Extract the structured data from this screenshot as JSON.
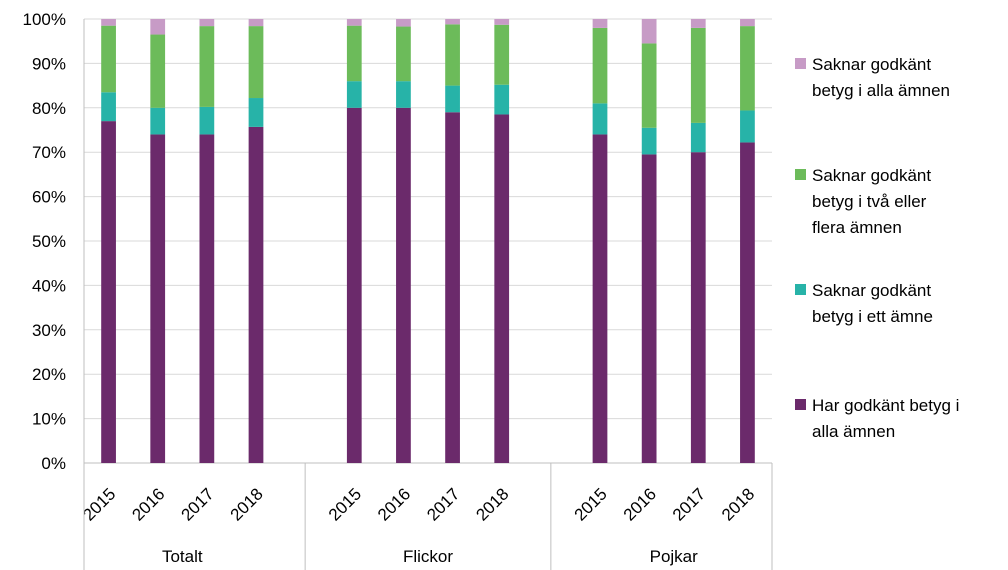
{
  "chart_data": {
    "type": "bar",
    "stacked": true,
    "percent_axis": true,
    "groups": [
      "Totalt",
      "Flickor",
      "Pojkar"
    ],
    "years": [
      "2015",
      "2016",
      "2017",
      "2018"
    ],
    "series": [
      {
        "name": "Har godkänt betyg i alla ämnen",
        "color": "#6B2A6B",
        "values": [
          [
            77,
            74,
            74,
            75.7
          ],
          [
            80,
            80,
            79,
            78.5
          ],
          [
            74,
            69.5,
            70,
            72.2
          ]
        ]
      },
      {
        "name": "Saknar godkänt betyg i ett ämne",
        "color": "#27B3A8",
        "values": [
          [
            6.5,
            6,
            6.2,
            6.5
          ],
          [
            6,
            6,
            6,
            6.7
          ],
          [
            7,
            6,
            6.6,
            7.2
          ]
        ]
      },
      {
        "name": "Saknar godkänt betyg i två eller flera ämnen",
        "color": "#6CBB5A",
        "values": [
          [
            15,
            16.5,
            18.2,
            16.2
          ],
          [
            12.5,
            12.3,
            13.8,
            13.5
          ],
          [
            17,
            19,
            21.4,
            19
          ]
        ]
      },
      {
        "name": "Saknar godkänt betyg i alla ämnen",
        "color": "#C79BC6",
        "values": [
          [
            1.5,
            3.5,
            1.6,
            1.6
          ],
          [
            1.5,
            1.7,
            1.2,
            1.3
          ],
          [
            2,
            5.5,
            2,
            1.6
          ]
        ]
      }
    ],
    "ylim": [
      0,
      100
    ],
    "yticks": [
      "0%",
      "10%",
      "20%",
      "30%",
      "40%",
      "50%",
      "60%",
      "70%",
      "80%",
      "90%",
      "100%"
    ],
    "grid": true,
    "legend_position": "right",
    "legend_lines": [
      [
        "Saknar godkänt",
        "betyg i alla ämnen"
      ],
      [
        "Saknar godkänt",
        "betyg i två eller",
        "flera ämnen"
      ],
      [
        "Saknar godkänt",
        "betyg i ett ämne"
      ],
      [
        "Har godkänt betyg i",
        "alla ämnen"
      ]
    ]
  },
  "colors": {
    "grid": "#D9D9D9",
    "axis": "#BFBFBF"
  }
}
